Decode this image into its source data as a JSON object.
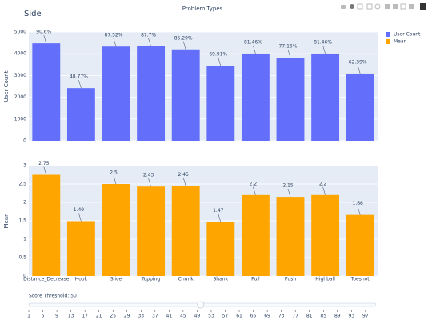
{
  "page_title": "Side",
  "chart_data": {
    "type": "bar",
    "title": "Problem Types",
    "legend": "top-right",
    "grid": true,
    "categories": [
      "Distance_Decrease",
      "Hook",
      "Slice",
      "Topping",
      "Chunk",
      "Shank",
      "Pull",
      "Push",
      "Highball",
      "Toeshot"
    ],
    "series": [
      {
        "name": "User Count",
        "color": "#636efa",
        "ylabel": "User Count",
        "values": [
          4480,
          2420,
          4330,
          4340,
          4200,
          3450,
          4010,
          3820,
          4010,
          3090
        ],
        "text": [
          "90.6%",
          "48.77%",
          "87.52%",
          "87.7%",
          "85.29%",
          "69.91%",
          "81.46%",
          "77.16%",
          "81.46%",
          "62.39%"
        ],
        "ylim": [
          0,
          5000
        ],
        "yticks": [
          0,
          1000,
          2000,
          3000,
          4000,
          5000
        ]
      },
      {
        "name": "Mean",
        "color": "#ffa500",
        "ylabel": "Mean",
        "values": [
          2.75,
          1.49,
          2.5,
          2.43,
          2.45,
          1.47,
          2.2,
          2.15,
          2.2,
          1.66
        ],
        "ylim": [
          0,
          3
        ],
        "yticks": [
          0,
          0.5,
          1,
          1.5,
          2,
          2.5,
          3
        ]
      }
    ]
  },
  "slider": {
    "label": "Score Threshold: 50",
    "min": 1,
    "max": 100,
    "value": 50,
    "ticks": [
      1,
      5,
      9,
      13,
      17,
      21,
      25,
      29,
      33,
      37,
      41,
      45,
      49,
      53,
      57,
      61,
      65,
      69,
      73,
      77,
      81,
      85,
      89,
      93,
      97
    ]
  }
}
